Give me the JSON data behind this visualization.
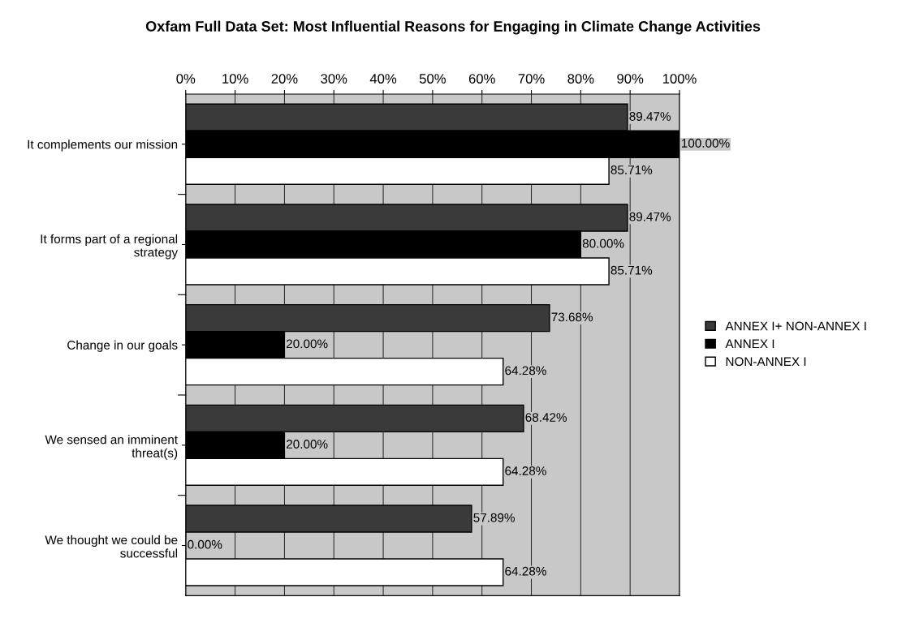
{
  "chart_data": {
    "type": "bar",
    "orientation": "horizontal",
    "title": "Oxfam Full Data Set: Most Influential Reasons for Engaging in Climate Change Activities",
    "categories": [
      "It complements our mission",
      "It forms part of a regional strategy",
      "Change in our goals",
      "We sensed an imminent threat(s)",
      "We thought we could be successful"
    ],
    "series": [
      {
        "name": "ANNEX I+ NON-ANNEX I",
        "color": "#3a3a3a",
        "values": [
          89.47,
          89.47,
          73.68,
          68.42,
          57.89
        ],
        "value_labels": [
          "89.47%",
          "89.47%",
          "73.68%",
          "68.42%",
          "57.89%"
        ]
      },
      {
        "name": "ANNEX I",
        "color": "#000000",
        "values": [
          100.0,
          80.0,
          20.0,
          20.0,
          0.0
        ],
        "value_labels": [
          "100.00%",
          "80.00%",
          "20.00%",
          "20.00%",
          "0.00%"
        ]
      },
      {
        "name": "NON-ANNEX I",
        "color": "#ffffff",
        "values": [
          85.71,
          85.71,
          64.28,
          64.28,
          64.28
        ],
        "value_labels": [
          "85.71%",
          "85.71%",
          "64.28%",
          "64.28%",
          "64.28%"
        ]
      }
    ],
    "xlim": [
      0,
      100
    ],
    "xticks": [
      {
        "value": 0,
        "label": "0%"
      },
      {
        "value": 10,
        "label": "10%"
      },
      {
        "value": 20,
        "label": "20%"
      },
      {
        "value": 30,
        "label": "30%"
      },
      {
        "value": 40,
        "label": "40%"
      },
      {
        "value": 50,
        "label": "50%"
      },
      {
        "value": 60,
        "label": "60%"
      },
      {
        "value": 70,
        "label": "70%"
      },
      {
        "value": 80,
        "label": "80%"
      },
      {
        "value": 90,
        "label": "90%"
      },
      {
        "value": 100,
        "label": "100%"
      }
    ],
    "grid": "x",
    "legend": "right"
  }
}
